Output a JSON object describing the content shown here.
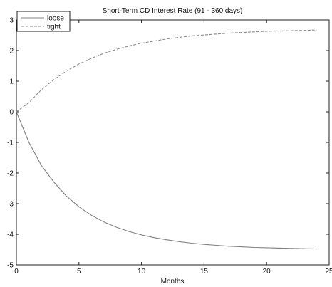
{
  "chart_data": {
    "type": "line",
    "title": "Short-Term CD Interest Rate (91 - 360 days)",
    "xlabel": "Months",
    "ylabel": "",
    "xlim": [
      0,
      25
    ],
    "ylim": [
      -5,
      3
    ],
    "xticks": [
      "0",
      "5",
      "10",
      "15",
      "20",
      "25"
    ],
    "yticks": [
      "3",
      "2",
      "1",
      "0",
      "-1",
      "-2",
      "-3",
      "-4",
      "-5"
    ],
    "legend_position": "top-left",
    "grid": false,
    "series": [
      {
        "name": "loose",
        "style": "solid",
        "color": "#808080",
        "x": [
          0,
          1,
          2,
          3,
          4,
          5,
          6,
          7,
          8,
          9,
          10,
          11,
          12,
          13,
          14,
          15,
          16,
          17,
          18,
          19,
          20,
          21,
          22,
          23,
          24
        ],
        "y": [
          0,
          -1.0,
          -1.75,
          -2.3,
          -2.75,
          -3.1,
          -3.38,
          -3.6,
          -3.77,
          -3.91,
          -4.02,
          -4.11,
          -4.18,
          -4.24,
          -4.29,
          -4.33,
          -4.36,
          -4.39,
          -4.41,
          -4.43,
          -4.44,
          -4.45,
          -4.46,
          -4.47,
          -4.48
        ]
      },
      {
        "name": "tight",
        "style": "dashed",
        "color": "#8a8a8a",
        "x": [
          0,
          1,
          2,
          3,
          4,
          5,
          6,
          7,
          8,
          9,
          10,
          11,
          12,
          13,
          14,
          15,
          16,
          17,
          18,
          19,
          20,
          21,
          22,
          23,
          24
        ],
        "y": [
          0,
          0.3,
          0.72,
          1.05,
          1.33,
          1.56,
          1.75,
          1.91,
          2.04,
          2.15,
          2.24,
          2.31,
          2.38,
          2.43,
          2.48,
          2.51,
          2.54,
          2.57,
          2.59,
          2.61,
          2.63,
          2.64,
          2.65,
          2.66,
          2.67
        ]
      }
    ]
  }
}
